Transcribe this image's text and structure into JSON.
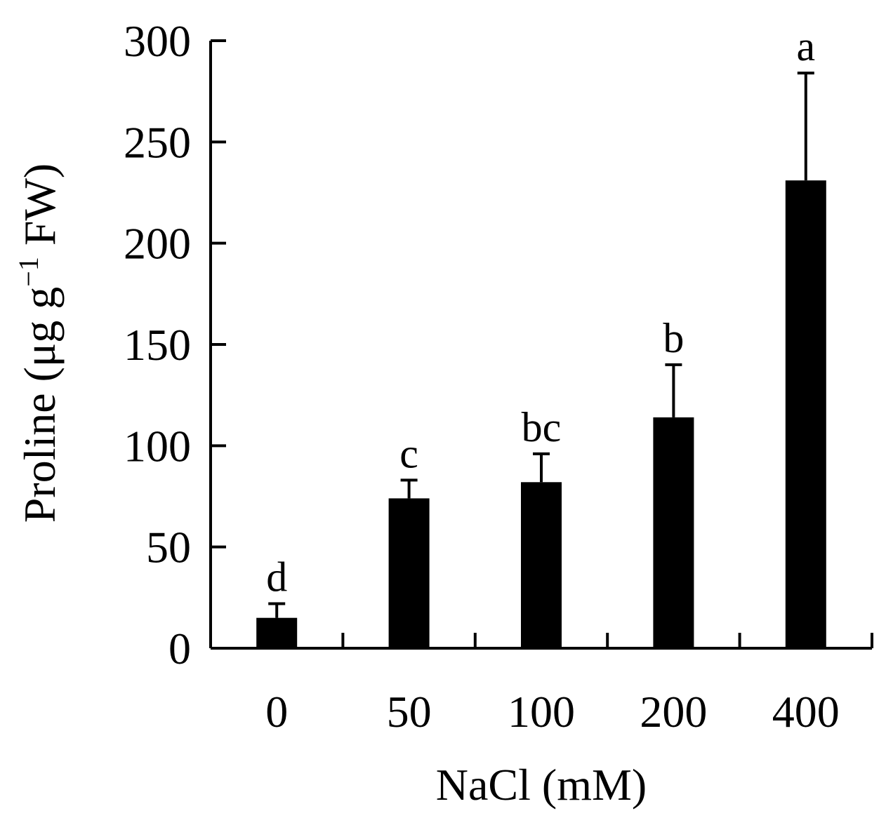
{
  "chart_data": {
    "type": "bar",
    "categories": [
      "0",
      "50",
      "100",
      "200",
      "400"
    ],
    "values": [
      15,
      74,
      82,
      114,
      231
    ],
    "error_upper": [
      22,
      83,
      96,
      140,
      284
    ],
    "significance_labels": [
      "d",
      "c",
      "bc",
      "b",
      "a"
    ],
    "title": "",
    "xlabel": "NaCl (mM)",
    "ylabel_main": "Proline (μg g",
    "ylabel_sup": "−1",
    "ylabel_tail": " FW)",
    "ylim": [
      0,
      300
    ],
    "yticks": [
      0,
      50,
      100,
      150,
      200,
      250,
      300
    ],
    "grid": false,
    "legend": "none",
    "bar_color": "#000000"
  }
}
